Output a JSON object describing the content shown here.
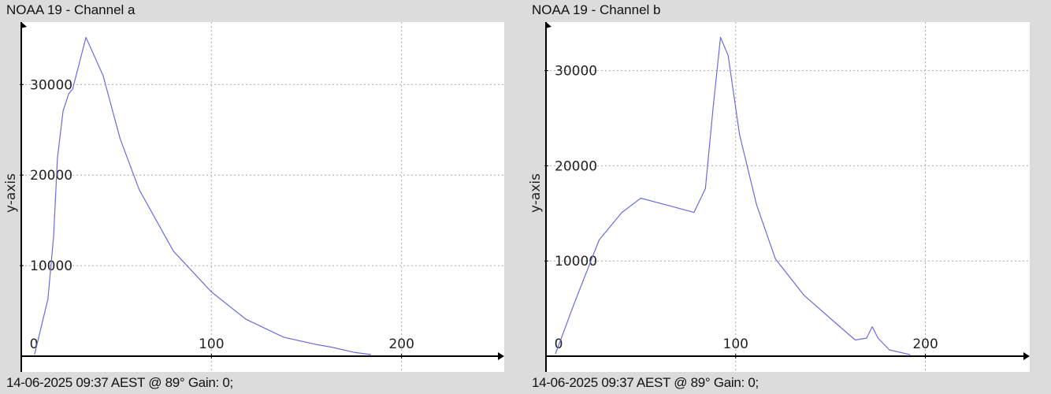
{
  "chart_data": [
    {
      "type": "line",
      "title": "NOAA 19 - Channel a",
      "ylabel": "y-axis",
      "xlabel": "",
      "xticks": [
        "0",
        "100",
        "200"
      ],
      "yticks": [
        "10000",
        "20000",
        "30000"
      ],
      "xlim": [
        0,
        254
      ],
      "ylim": [
        0,
        36900
      ],
      "grid": true,
      "color": "#6b6be0",
      "footer": "14-06-2025 09:37 AEST @ 89° Gain: 0;",
      "x": [
        7,
        10,
        14,
        17,
        19,
        22,
        25,
        27,
        34,
        43,
        52,
        62,
        80,
        100,
        118,
        138,
        155,
        163,
        175,
        184
      ],
      "y": [
        200,
        2800,
        6300,
        13200,
        21900,
        27100,
        29000,
        29500,
        35200,
        31000,
        24000,
        18400,
        11600,
        7100,
        4100,
        2100,
        1300,
        1000,
        430,
        170
      ]
    },
    {
      "type": "line",
      "title": "NOAA 19 - Channel b",
      "ylabel": "y-axis",
      "xlabel": "",
      "xticks": [
        "0",
        "100",
        "200"
      ],
      "yticks": [
        "10000",
        "20000",
        "30000"
      ],
      "xlim": [
        0,
        255
      ],
      "ylim": [
        0,
        35100
      ],
      "grid": true,
      "color": "#6b6be0",
      "footer": "14-06-2025 09:37 AEST @ 89° Gain: 0;",
      "x": [
        5,
        15,
        28,
        40,
        50,
        65,
        78,
        84,
        88,
        92,
        96,
        102,
        111,
        121,
        136,
        152,
        163,
        169,
        172,
        175,
        181,
        192
      ],
      "y": [
        250,
        5600,
        12200,
        15100,
        16600,
        15800,
        15100,
        17600,
        25900,
        33500,
        31600,
        23300,
        15900,
        10200,
        6400,
        3600,
        1700,
        1900,
        3100,
        1900,
        660,
        160
      ]
    }
  ]
}
